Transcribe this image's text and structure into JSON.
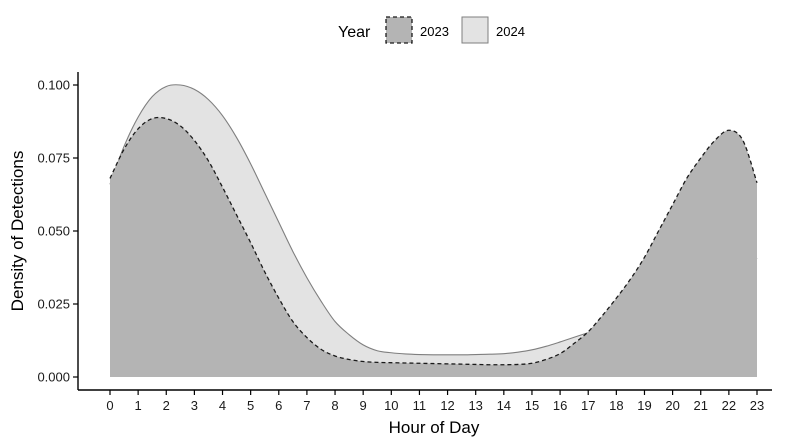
{
  "chart_data": {
    "type": "area",
    "xlabel": "Hour of Day",
    "ylabel": "Density of Detections",
    "xlim": [
      0,
      23
    ],
    "ylim": [
      0,
      0.1
    ],
    "x_ticks": [
      0,
      1,
      2,
      3,
      4,
      5,
      6,
      7,
      8,
      9,
      10,
      11,
      12,
      13,
      14,
      15,
      16,
      17,
      18,
      19,
      20,
      21,
      22,
      23
    ],
    "y_ticks": [
      0.0,
      0.025,
      0.05,
      0.075,
      0.1
    ],
    "y_tick_labels": [
      "0.000",
      "0.025",
      "0.050",
      "0.075",
      "0.100"
    ],
    "grid": false,
    "legend": {
      "title": "Year",
      "position": "top"
    },
    "x": [
      0,
      0.5,
      1,
      1.5,
      2,
      2.5,
      3,
      3.5,
      4,
      4.5,
      5,
      5.5,
      6,
      6.5,
      7,
      7.5,
      8,
      8.5,
      9,
      9.5,
      10,
      10.5,
      11,
      11.5,
      12,
      12.5,
      13,
      13.5,
      14,
      14.5,
      15,
      15.5,
      16,
      16.5,
      17,
      17.5,
      18,
      18.5,
      19,
      19.5,
      20,
      20.5,
      21,
      21.5,
      22,
      22.5,
      23
    ],
    "series": [
      {
        "name": "2024",
        "fill": "#e3e3e3",
        "stroke": "#7f7f7f",
        "dash": "solid",
        "values": [
          0.066,
          0.079,
          0.089,
          0.096,
          0.0995,
          0.1,
          0.0985,
          0.095,
          0.0895,
          0.082,
          0.073,
          0.063,
          0.053,
          0.043,
          0.034,
          0.026,
          0.019,
          0.0145,
          0.011,
          0.009,
          0.0083,
          0.0079,
          0.0077,
          0.0076,
          0.0076,
          0.0076,
          0.0077,
          0.0078,
          0.008,
          0.0085,
          0.0093,
          0.0105,
          0.012,
          0.0136,
          0.0152,
          0.0168,
          0.0188,
          0.021,
          0.0237,
          0.0268,
          0.0305,
          0.0345,
          0.0398,
          0.0452,
          0.0477,
          0.0462,
          0.0404
        ]
      },
      {
        "name": "2023",
        "fill": "#b4b4b4",
        "stroke": "#1a1a1a",
        "dash": "dashed",
        "values": [
          0.068,
          0.078,
          0.085,
          0.0885,
          0.0885,
          0.086,
          0.081,
          0.074,
          0.065,
          0.0555,
          0.046,
          0.036,
          0.027,
          0.019,
          0.0135,
          0.0095,
          0.0072,
          0.006,
          0.0053,
          0.005,
          0.0049,
          0.0048,
          0.0047,
          0.0046,
          0.0045,
          0.0044,
          0.0043,
          0.0042,
          0.0042,
          0.0043,
          0.0047,
          0.006,
          0.008,
          0.0115,
          0.0155,
          0.021,
          0.027,
          0.0335,
          0.041,
          0.05,
          0.059,
          0.068,
          0.075,
          0.081,
          0.0845,
          0.081,
          0.0665
        ]
      }
    ]
  }
}
